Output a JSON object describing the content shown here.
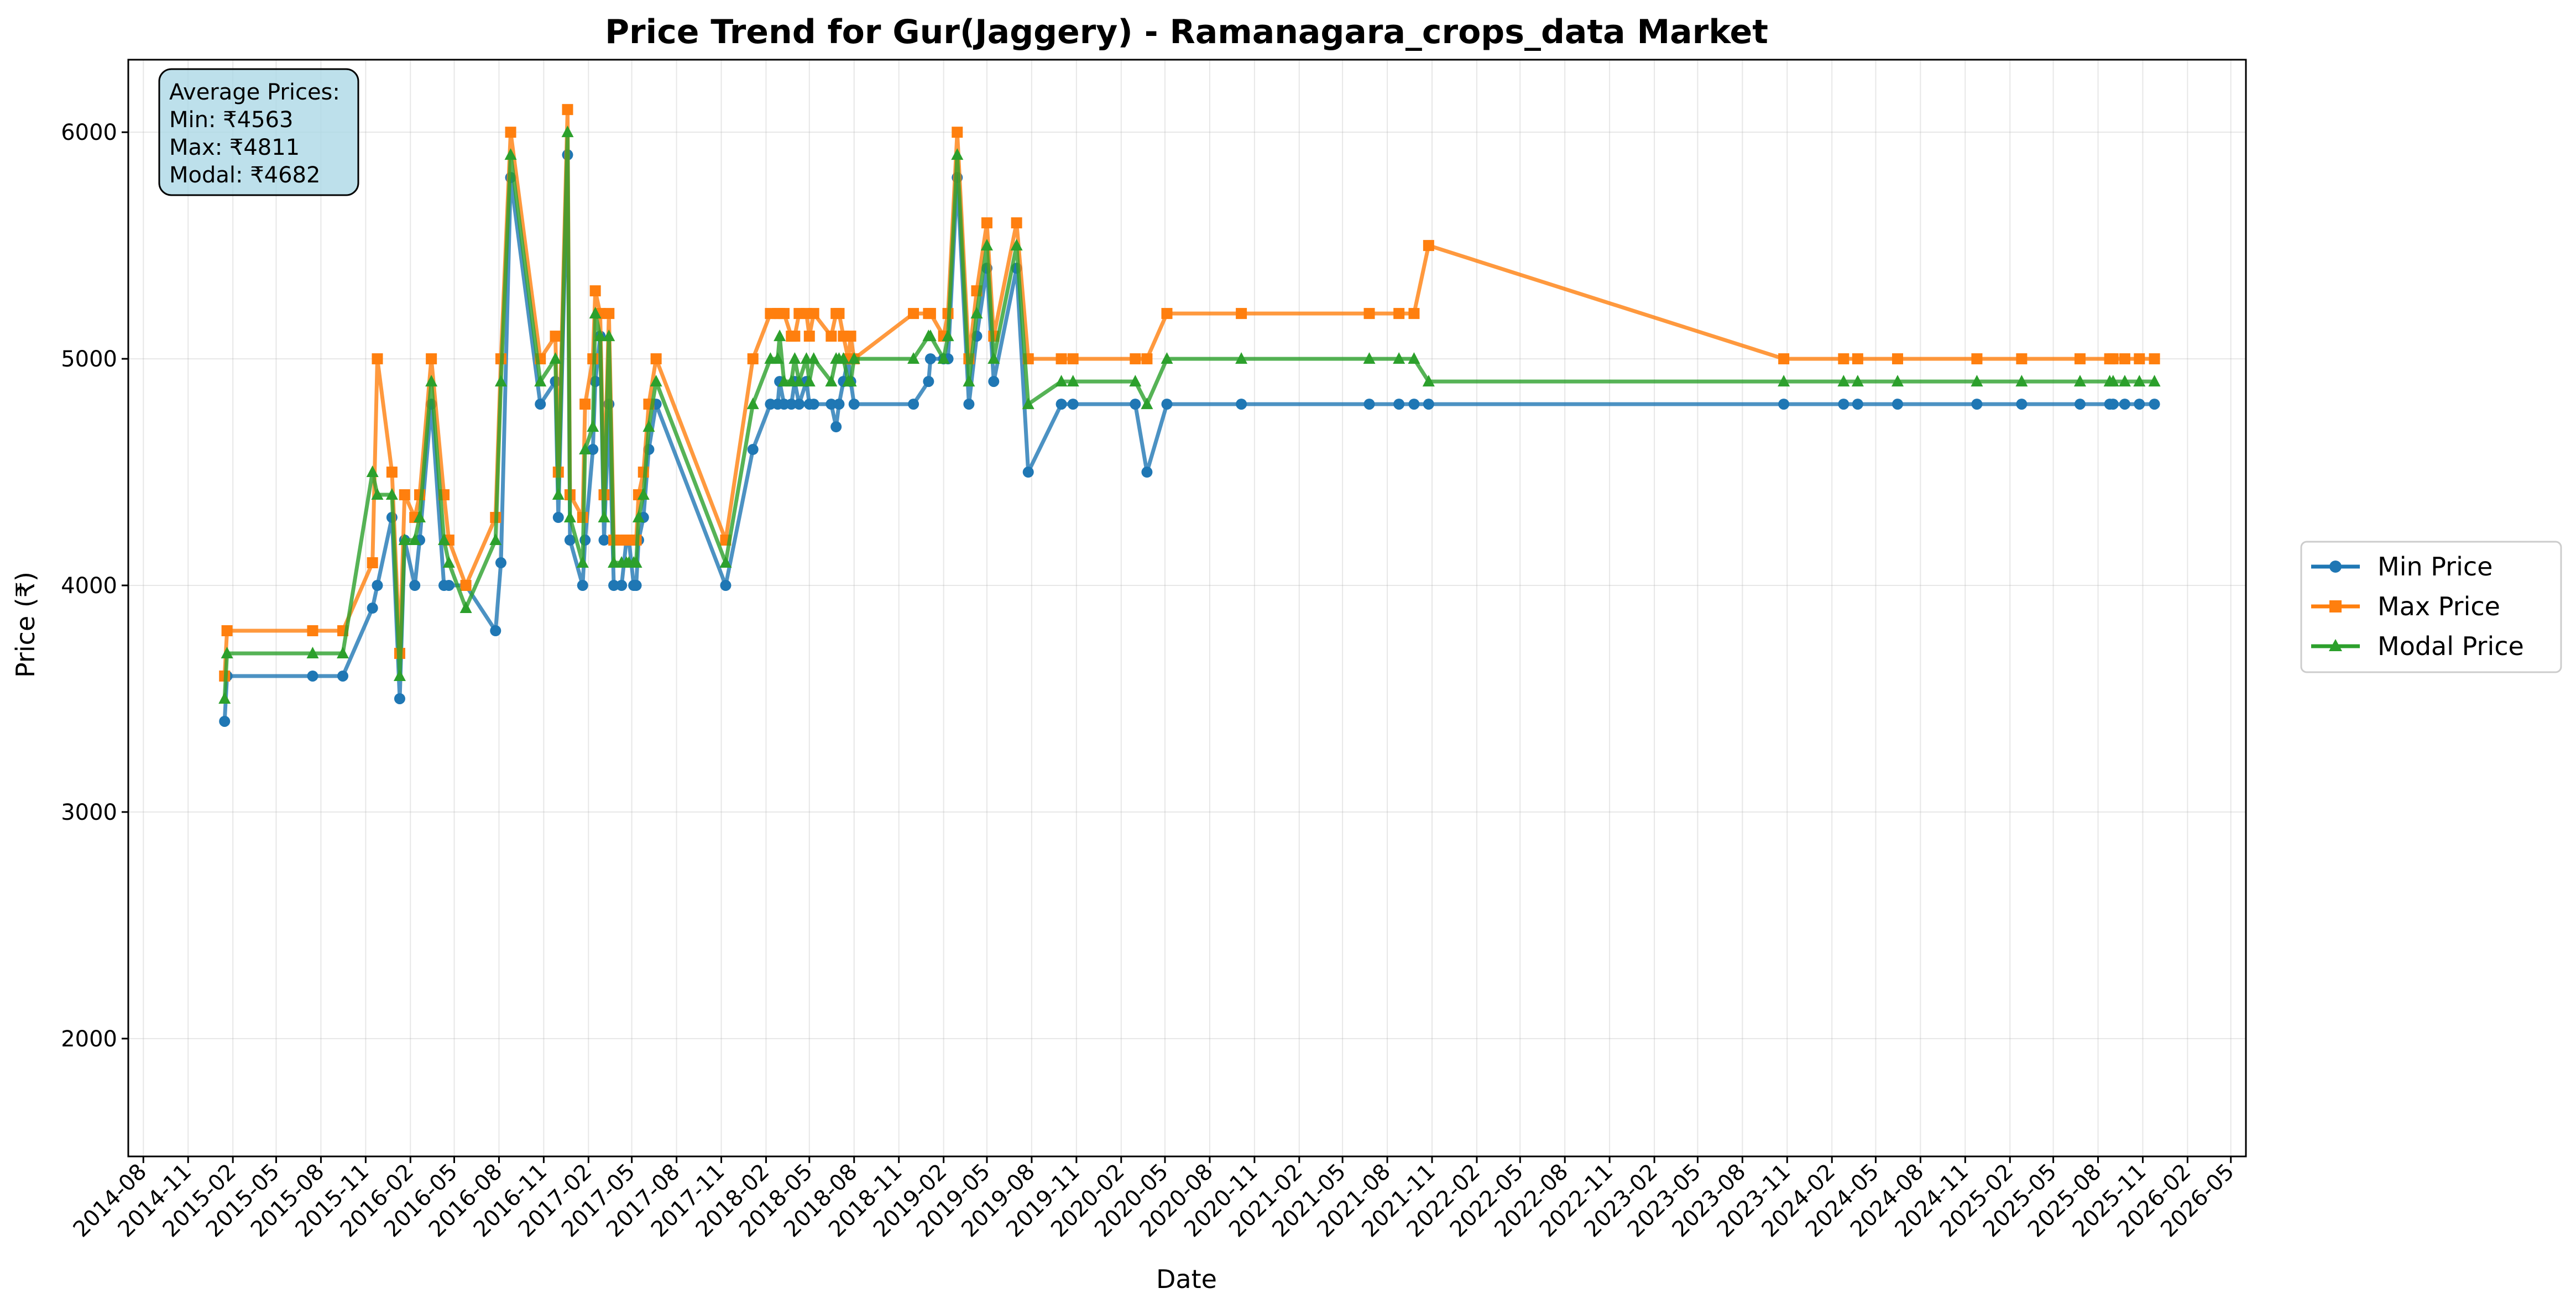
{
  "chart_data": {
    "type": "line",
    "title": "Price Trend for Gur(Jaggery) - Ramanagara_crops_data Market",
    "xlabel": "Date",
    "ylabel": "Price (₹)",
    "xlim": [
      "2014-07-01",
      "2026-06-01"
    ],
    "ylim": [
      1480,
      6320
    ],
    "yticks": [
      2000,
      3000,
      4000,
      5000,
      6000
    ],
    "xticks": [
      "2014-08",
      "2014-11",
      "2015-02",
      "2015-05",
      "2015-08",
      "2015-11",
      "2016-02",
      "2016-05",
      "2016-08",
      "2016-11",
      "2017-02",
      "2017-05",
      "2017-08",
      "2017-11",
      "2018-02",
      "2018-05",
      "2018-08",
      "2018-11",
      "2019-02",
      "2019-05",
      "2019-08",
      "2019-11",
      "2020-02",
      "2020-05",
      "2020-08",
      "2020-11",
      "2021-02",
      "2021-05",
      "2021-08",
      "2021-11",
      "2022-02",
      "2022-05",
      "2022-08",
      "2022-11",
      "2023-02",
      "2023-05",
      "2023-08",
      "2023-11",
      "2024-02",
      "2024-05",
      "2024-08",
      "2024-11",
      "2025-02",
      "2025-05",
      "2025-08",
      "2025-11",
      "2026-02",
      "2026-05"
    ],
    "grid": true,
    "legend_position": "right",
    "x": [
      "2015-01-15",
      "2015-01-20",
      "2015-07-15",
      "2015-09-15",
      "2015-11-15",
      "2015-11-25",
      "2015-12-25",
      "2016-01-10",
      "2016-01-20",
      "2016-02-10",
      "2016-02-20",
      "2016-03-15",
      "2016-04-10",
      "2016-04-20",
      "2016-05-25",
      "2016-07-25",
      "2016-08-05",
      "2016-08-25",
      "2016-10-25",
      "2016-11-25",
      "2016-12-01",
      "2016-12-20",
      "2016-12-25",
      "2017-01-20",
      "2017-01-25",
      "2017-02-10",
      "2017-02-15",
      "2017-02-25",
      "2017-03-05",
      "2017-03-15",
      "2017-03-25",
      "2017-04-10",
      "2017-04-20",
      "2017-04-25",
      "2017-05-05",
      "2017-05-10",
      "2017-05-15",
      "2017-05-25",
      "2017-06-05",
      "2017-06-20",
      "2017-11-10",
      "2018-01-05",
      "2018-02-10",
      "2018-02-25",
      "2018-03-01",
      "2018-03-10",
      "2018-03-25",
      "2018-04-01",
      "2018-04-10",
      "2018-04-25",
      "2018-05-01",
      "2018-05-10",
      "2018-06-15",
      "2018-06-25",
      "2018-07-01",
      "2018-07-10",
      "2018-07-20",
      "2018-07-25",
      "2018-08-01",
      "2018-12-01",
      "2019-01-01",
      "2019-01-05",
      "2019-02-01",
      "2019-02-10",
      "2019-03-01",
      "2019-03-25",
      "2019-04-10",
      "2019-05-01",
      "2019-05-15",
      "2019-07-01",
      "2019-07-25",
      "2019-10-01",
      "2019-10-25",
      "2020-03-01",
      "2020-03-25",
      "2020-05-05",
      "2020-10-05",
      "2021-06-25",
      "2021-08-25",
      "2021-09-25",
      "2021-10-25",
      "2023-10-25",
      "2024-02-25",
      "2024-03-25",
      "2024-06-15",
      "2024-11-25",
      "2025-02-25",
      "2025-06-25",
      "2025-08-25",
      "2025-09-01",
      "2025-09-25",
      "2025-10-25",
      "2025-11-25"
    ],
    "series": [
      {
        "name": "Min Price",
        "color": "#1f77b4",
        "marker": "circle",
        "values": [
          3400,
          3600,
          3600,
          3600,
          3900,
          4000,
          4300,
          3500,
          4200,
          4000,
          4200,
          4800,
          4000,
          4000,
          4000,
          3800,
          4100,
          5800,
          4800,
          4900,
          4300,
          5900,
          4200,
          4000,
          4200,
          4600,
          4900,
          5100,
          4200,
          4800,
          4000,
          4000,
          4200,
          4200,
          4000,
          4000,
          4200,
          4300,
          4600,
          4800,
          4000,
          4600,
          4800,
          4800,
          4900,
          4800,
          4800,
          4900,
          4800,
          4900,
          4800,
          4800,
          4800,
          4700,
          4800,
          4900,
          5000,
          4900,
          4800,
          4800,
          4900,
          5000,
          5000,
          5000,
          5800,
          4800,
          5100,
          5400,
          4900,
          5400,
          4500,
          4800,
          4800,
          4800,
          4500,
          4800,
          4800,
          4800,
          4800,
          4800,
          4800,
          4800,
          4800,
          4800,
          4800,
          4800,
          4800,
          4800,
          4800,
          4800,
          4800,
          4800,
          4800
        ]
      },
      {
        "name": "Max Price",
        "color": "#ff7f0e",
        "marker": "square",
        "values": [
          3600,
          3800,
          3800,
          3800,
          4100,
          5000,
          4500,
          3700,
          4400,
          4300,
          4400,
          5000,
          4400,
          4200,
          4000,
          4300,
          5000,
          6000,
          5000,
          5100,
          4500,
          6100,
          4400,
          4300,
          4800,
          5000,
          5300,
          5200,
          4400,
          5200,
          4200,
          4200,
          4200,
          4200,
          4200,
          4200,
          4400,
          4500,
          4800,
          5000,
          4200,
          5000,
          5200,
          5200,
          5200,
          5200,
          5100,
          5100,
          5200,
          5200,
          5100,
          5200,
          5100,
          5200,
          5200,
          5100,
          5000,
          5100,
          5000,
          5200,
          5200,
          5200,
          5100,
          5200,
          6000,
          5000,
          5300,
          5600,
          5100,
          5600,
          5000,
          5000,
          5000,
          5000,
          5000,
          5200,
          5200,
          5200,
          5200,
          5200,
          5500,
          5000,
          5000,
          5000,
          5000,
          5000,
          5000,
          5000,
          5000,
          5000,
          5000,
          5000,
          5000
        ]
      },
      {
        "name": "Modal Price",
        "color": "#2ca02c",
        "marker": "triangle",
        "values": [
          3500,
          3700,
          3700,
          3700,
          4500,
          4400,
          4400,
          3600,
          4200,
          4200,
          4300,
          4900,
          4200,
          4100,
          3900,
          4200,
          4900,
          5900,
          4900,
          5000,
          4400,
          6000,
          4300,
          4100,
          4600,
          4700,
          5200,
          5100,
          4300,
          5100,
          4100,
          4100,
          4100,
          4100,
          4100,
          4100,
          4300,
          4400,
          4700,
          4900,
          4100,
          4800,
          5000,
          5000,
          5100,
          4900,
          4900,
          5000,
          4900,
          5000,
          4900,
          5000,
          4900,
          5000,
          5000,
          5000,
          4900,
          4900,
          5000,
          5000,
          5100,
          5100,
          5000,
          5100,
          5900,
          4900,
          5200,
          5500,
          5000,
          5500,
          4800,
          4900,
          4900,
          4900,
          4800,
          5000,
          5000,
          5000,
          5000,
          5000,
          4900,
          4900,
          4900,
          4900,
          4900,
          4900,
          4900,
          4900,
          4900,
          4900,
          4900,
          4900,
          4900
        ]
      }
    ],
    "annotation": {
      "lines": [
        "Average Prices:",
        "Min: ₹4563",
        "Max: ₹4811",
        "Modal: ₹4682"
      ],
      "background": "#add8e6"
    }
  }
}
